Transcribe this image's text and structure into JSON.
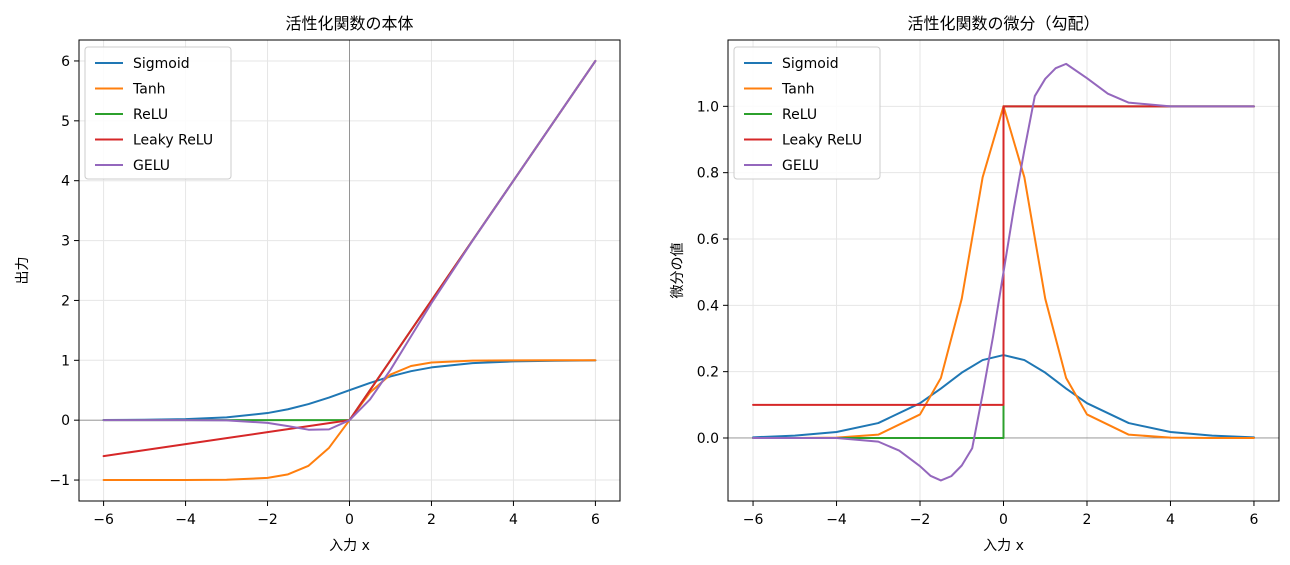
{
  "chart_data": [
    {
      "type": "line",
      "title": "活性化関数の本体",
      "xlabel": "入力 x",
      "ylabel": "出力",
      "xlim": [
        -6.6,
        6.6
      ],
      "ylim": [
        -1.35,
        6.35
      ],
      "xticks": [
        -6,
        -4,
        -2,
        0,
        2,
        4,
        6
      ],
      "yticks": [
        -1,
        0,
        1,
        2,
        3,
        4,
        5,
        6
      ],
      "xtick_labels": [
        "−6",
        "−4",
        "−2",
        "0",
        "2",
        "4",
        "6"
      ],
      "ytick_labels": [
        "−1",
        "0",
        "1",
        "2",
        "3",
        "4",
        "5",
        "6"
      ],
      "grid": true,
      "legend_position": "top-left",
      "reference_lines": {
        "x": 0,
        "y": 0
      },
      "x": [
        -6,
        -5,
        -4,
        -3,
        -2,
        -1.5,
        -1,
        -0.5,
        0,
        0.5,
        1,
        1.5,
        2,
        3,
        4,
        5,
        6
      ],
      "series": [
        {
          "name": "Sigmoid",
          "color": "#1f77b4",
          "values": [
            0.002,
            0.007,
            0.018,
            0.047,
            0.119,
            0.182,
            0.269,
            0.378,
            0.5,
            0.622,
            0.731,
            0.818,
            0.881,
            0.953,
            0.982,
            0.993,
            0.998
          ]
        },
        {
          "name": "Tanh",
          "color": "#ff7f0e",
          "values": [
            -1.0,
            -1.0,
            -0.999,
            -0.995,
            -0.964,
            -0.905,
            -0.762,
            -0.462,
            0.0,
            0.462,
            0.762,
            0.905,
            0.964,
            0.995,
            0.999,
            1.0,
            1.0
          ]
        },
        {
          "name": "ReLU",
          "color": "#2ca02c",
          "values": [
            0,
            0,
            0,
            0,
            0,
            0,
            0,
            0,
            0,
            0.5,
            1,
            1.5,
            2,
            3,
            4,
            5,
            6
          ]
        },
        {
          "name": "Leaky ReLU",
          "color": "#d62728",
          "values": [
            -0.6,
            -0.5,
            -0.4,
            -0.3,
            -0.2,
            -0.15,
            -0.1,
            -0.05,
            0,
            0.5,
            1,
            1.5,
            2,
            3,
            4,
            5,
            6
          ]
        },
        {
          "name": "GELU",
          "color": "#9467bd",
          "values": [
            0.0,
            0.0,
            0.0,
            -0.004,
            -0.045,
            -0.1,
            -0.159,
            -0.154,
            0.0,
            0.346,
            0.841,
            1.4,
            1.955,
            2.996,
            4.0,
            5.0,
            6.0
          ]
        }
      ]
    },
    {
      "type": "line",
      "title": "活性化関数の微分（勾配）",
      "xlabel": "入力 x",
      "ylabel": "微分の値",
      "xlim": [
        -6.6,
        6.6
      ],
      "ylim": [
        -0.19,
        1.2
      ],
      "xticks": [
        -6,
        -4,
        -2,
        0,
        2,
        4,
        6
      ],
      "yticks": [
        0.0,
        0.2,
        0.4,
        0.6,
        0.8,
        1.0
      ],
      "xtick_labels": [
        "−6",
        "−4",
        "−2",
        "0",
        "2",
        "4",
        "6"
      ],
      "ytick_labels": [
        "0.0",
        "0.2",
        "0.4",
        "0.6",
        "0.8",
        "1.0"
      ],
      "grid": true,
      "legend_position": "top-left",
      "reference_lines": {
        "y": 0
      },
      "series": [
        {
          "name": "Sigmoid",
          "color": "#1f77b4",
          "x": [
            -6,
            -5,
            -4,
            -3,
            -2,
            -1.5,
            -1,
            -0.5,
            0,
            0.5,
            1,
            1.5,
            2,
            3,
            4,
            5,
            6
          ],
          "values": [
            0.002,
            0.007,
            0.018,
            0.045,
            0.105,
            0.149,
            0.197,
            0.235,
            0.25,
            0.235,
            0.197,
            0.149,
            0.105,
            0.045,
            0.018,
            0.007,
            0.002
          ]
        },
        {
          "name": "Tanh",
          "color": "#ff7f0e",
          "x": [
            -6,
            -5,
            -4,
            -3,
            -2,
            -1.5,
            -1,
            -0.5,
            0,
            0.5,
            1,
            1.5,
            2,
            3,
            4,
            5,
            6
          ],
          "values": [
            0.0,
            0.0,
            0.001,
            0.01,
            0.071,
            0.181,
            0.42,
            0.786,
            1.0,
            0.786,
            0.42,
            0.181,
            0.071,
            0.01,
            0.001,
            0.0,
            0.0
          ]
        },
        {
          "name": "ReLU",
          "color": "#2ca02c",
          "x": [
            -6,
            0,
            0,
            6
          ],
          "values": [
            0,
            0,
            1,
            1
          ]
        },
        {
          "name": "Leaky ReLU",
          "color": "#d62728",
          "x": [
            -6,
            0,
            0,
            6
          ],
          "values": [
            0.1,
            0.1,
            1,
            1
          ]
        },
        {
          "name": "GELU",
          "color": "#9467bd",
          "x": [
            -6,
            -5,
            -4,
            -3,
            -2.5,
            -2,
            -1.75,
            -1.5,
            -1.25,
            -1,
            -0.75,
            -0.5,
            -0.25,
            0,
            0.25,
            0.5,
            0.75,
            1,
            1.25,
            1.5,
            2,
            2.5,
            3,
            4,
            5,
            6
          ],
          "values": [
            0.0,
            0.0,
            0.0,
            -0.011,
            -0.038,
            -0.085,
            -0.114,
            -0.128,
            -0.115,
            -0.083,
            -0.031,
            0.132,
            0.306,
            0.5,
            0.694,
            0.868,
            1.031,
            1.083,
            1.115,
            1.128,
            1.085,
            1.038,
            1.011,
            1.0,
            1.0,
            1.0
          ]
        }
      ]
    }
  ]
}
